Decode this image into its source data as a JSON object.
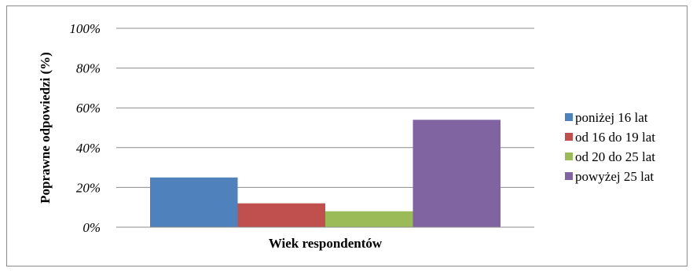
{
  "chart_data": {
    "type": "bar",
    "title": "",
    "xlabel": "Wiek respondentów",
    "ylabel": "Poprawne odpowiedzi (%)",
    "ylim": [
      0,
      100
    ],
    "yticks": [
      0,
      20,
      40,
      60,
      80,
      100
    ],
    "ytick_suffix": "%",
    "grid": true,
    "legend_position": "right",
    "categories": [
      ""
    ],
    "series": [
      {
        "name": "poniżej 16 lat",
        "values": [
          25
        ],
        "color": "#4f81bd"
      },
      {
        "name": "od 16 do 19 lat",
        "values": [
          12
        ],
        "color": "#c0504d"
      },
      {
        "name": "od 20 do 25 lat",
        "values": [
          8
        ],
        "color": "#9bbb59"
      },
      {
        "name": "powyżej 25 lat",
        "values": [
          54
        ],
        "color": "#8064a2"
      }
    ]
  }
}
